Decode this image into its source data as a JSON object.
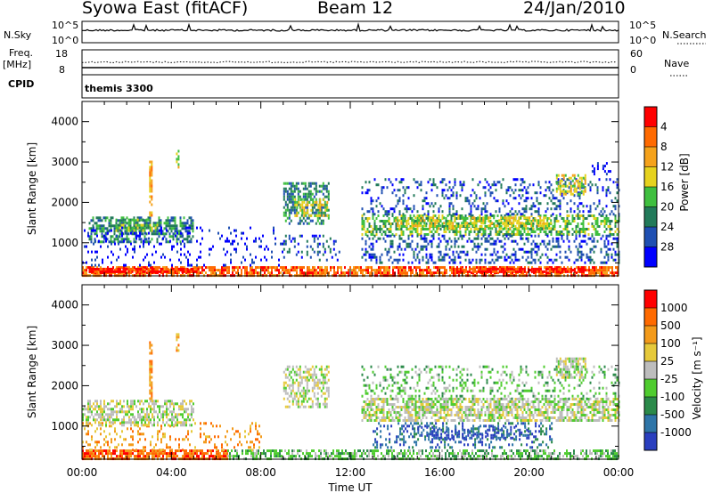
{
  "header": {
    "station": "Syowa East (fitACF)",
    "beam": "Beam 12",
    "date": "24/Jan/2010"
  },
  "summary_panels": {
    "nsky_label": "N.Sky",
    "nsky_ticks": [
      "10^5",
      "10^0"
    ],
    "nsearch_label": "N.Search",
    "nsearch_ticks": [
      "10^5",
      "10^0"
    ],
    "freq_label_1": "Freq.",
    "freq_label_2": "[MHz]",
    "freq_ticks": [
      "18",
      "8"
    ],
    "nave_label": "Nave",
    "nave_ticks": [
      "60",
      "0"
    ],
    "cpid_label": "CPID",
    "cpid_value": "themis 3300"
  },
  "chart_data": [
    {
      "type": "heatmap",
      "quantity": "Power",
      "ylabel": "Slant Range [km]",
      "ylim": [
        180,
        4500
      ],
      "yticks": [
        "1000",
        "2000",
        "3000",
        "4000"
      ],
      "xlabel": "Time UT",
      "xlim_hours": [
        0,
        24
      ],
      "xticks": [
        "00:00",
        "04:00",
        "08:00",
        "12:00",
        "16:00",
        "20:00",
        "00:00"
      ],
      "colorbar": {
        "label": "Power [dB]",
        "ticks": [
          "4",
          "8",
          "12",
          "16",
          "20",
          "24",
          "28"
        ],
        "colors": [
          "#0000ff",
          "#1f4fb2",
          "#227a5a",
          "#3fbf3f",
          "#e6d21e",
          "#f5a21b",
          "#ff6a00",
          "#ff0000"
        ]
      },
      "regions": [
        {
          "t0": 0.0,
          "t1": 24.0,
          "r0": 200,
          "r1": 420,
          "level": 6,
          "density": 0.75
        },
        {
          "t0": 0.3,
          "t1": 5.2,
          "r0": 250,
          "r1": 380,
          "level": 7,
          "density": 0.8
        },
        {
          "t0": 16.5,
          "t1": 22.5,
          "r0": 250,
          "r1": 380,
          "level": 7,
          "density": 0.8
        },
        {
          "t0": 0.3,
          "t1": 5.0,
          "r0": 1050,
          "r1": 1650,
          "level": 2,
          "density": 0.55
        },
        {
          "t0": 1.5,
          "t1": 3.5,
          "r0": 1300,
          "r1": 1600,
          "level": 3,
          "density": 0.5
        },
        {
          "t0": 0.0,
          "t1": 9.0,
          "r0": 450,
          "r1": 1400,
          "level": 0,
          "density": 0.12
        },
        {
          "t0": 9.0,
          "t1": 11.0,
          "r0": 1500,
          "r1": 2500,
          "level": 2,
          "density": 0.5
        },
        {
          "t0": 9.5,
          "t1": 11.0,
          "r0": 1650,
          "r1": 2100,
          "level": 4,
          "density": 0.45
        },
        {
          "t0": 9.0,
          "t1": 11.5,
          "r0": 600,
          "r1": 1200,
          "level": 1,
          "density": 0.25
        },
        {
          "t0": 12.5,
          "t1": 24.0,
          "r0": 1200,
          "r1": 1700,
          "level": 3,
          "density": 0.55
        },
        {
          "t0": 14.0,
          "t1": 21.0,
          "r0": 1350,
          "r1": 1650,
          "level": 4,
          "density": 0.45
        },
        {
          "t0": 12.5,
          "t1": 24.0,
          "r0": 500,
          "r1": 1200,
          "level": 1,
          "density": 0.3
        },
        {
          "t0": 12.5,
          "t1": 24.0,
          "r0": 1700,
          "r1": 2600,
          "level": 1,
          "density": 0.22
        },
        {
          "t0": 21.2,
          "t1": 22.5,
          "r0": 2200,
          "r1": 2700,
          "level": 4,
          "density": 0.6
        },
        {
          "t0": 22.8,
          "t1": 23.6,
          "r0": 2700,
          "r1": 3000,
          "level": 0,
          "density": 0.4
        },
        {
          "t0": 3.0,
          "t1": 3.1,
          "r0": 1700,
          "r1": 3100,
          "level": 5,
          "density": 0.7
        },
        {
          "t0": 4.2,
          "t1": 4.3,
          "r0": 2900,
          "r1": 3300,
          "level": 4,
          "density": 0.7
        }
      ]
    },
    {
      "type": "heatmap",
      "quantity": "Velocity",
      "ylabel": "Slant Range [km]",
      "ylim": [
        180,
        4500
      ],
      "yticks": [
        "1000",
        "2000",
        "3000",
        "4000"
      ],
      "xlabel": "Time UT",
      "xlim_hours": [
        0,
        24
      ],
      "xticks": [
        "00:00",
        "04:00",
        "08:00",
        "12:00",
        "16:00",
        "20:00",
        "00:00"
      ],
      "colorbar": {
        "label": "Velocity [m s⁻¹]",
        "ticks": [
          "1000",
          "500",
          "100",
          "25",
          "-25",
          "-100",
          "-500",
          "-1000"
        ],
        "colors": [
          "#2a3fbf",
          "#2e75a8",
          "#2b8a4a",
          "#4fcc2f",
          "#bdbdbd",
          "#e6c93a",
          "#f39a1a",
          "#ff6a00",
          "#ff0000"
        ]
      },
      "regions": [
        {
          "t0": 0.0,
          "t1": 6.5,
          "r0": 200,
          "r1": 420,
          "level": 7,
          "density": 0.8
        },
        {
          "t0": 6.5,
          "t1": 24.0,
          "r0": 200,
          "r1": 420,
          "level": 3,
          "density": 0.55
        },
        {
          "t0": 0.0,
          "t1": 8.0,
          "r0": 420,
          "r1": 1100,
          "level": 6,
          "density": 0.2
        },
        {
          "t0": 0.0,
          "t1": 5.0,
          "r0": 1050,
          "r1": 1650,
          "level": 4,
          "density": 0.55
        },
        {
          "t0": 9.0,
          "t1": 11.0,
          "r0": 1500,
          "r1": 2500,
          "level": 4,
          "density": 0.55
        },
        {
          "t0": 12.5,
          "t1": 24.0,
          "r0": 1150,
          "r1": 1700,
          "level": 4,
          "density": 0.65
        },
        {
          "t0": 13.0,
          "t1": 21.0,
          "r0": 500,
          "r1": 1100,
          "level": 1,
          "density": 0.3
        },
        {
          "t0": 15.0,
          "t1": 20.0,
          "r0": 700,
          "r1": 1000,
          "level": 0,
          "density": 0.35
        },
        {
          "t0": 12.5,
          "t1": 24.0,
          "r0": 1700,
          "r1": 2500,
          "level": 3,
          "density": 0.22
        },
        {
          "t0": 21.2,
          "t1": 22.5,
          "r0": 2200,
          "r1": 2700,
          "level": 4,
          "density": 0.6
        },
        {
          "t0": 3.0,
          "t1": 3.1,
          "r0": 1700,
          "r1": 3100,
          "level": 6,
          "density": 0.7
        },
        {
          "t0": 4.2,
          "t1": 4.3,
          "r0": 2900,
          "r1": 3300,
          "level": 6,
          "density": 0.7
        }
      ]
    }
  ]
}
